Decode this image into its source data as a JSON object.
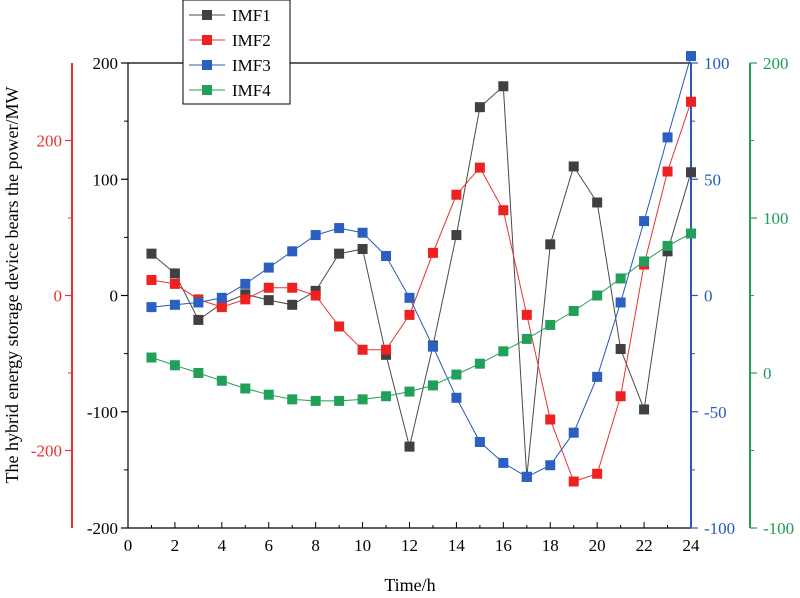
{
  "chart_data": {
    "type": "line",
    "xlabel": "Time/h",
    "ylabel": "The hybrid energy storage device bears the power/MW",
    "x": [
      1,
      2,
      3,
      4,
      5,
      6,
      7,
      8,
      9,
      10,
      11,
      12,
      13,
      14,
      15,
      16,
      17,
      18,
      19,
      20,
      21,
      22,
      23,
      24
    ],
    "xlim": [
      0,
      24
    ],
    "x_ticks": [
      0,
      2,
      4,
      6,
      8,
      10,
      12,
      14,
      16,
      18,
      20,
      22,
      24
    ],
    "axes": {
      "IMF1": {
        "range": [
          -200,
          200
        ],
        "ticks": [
          -200,
          -100,
          0,
          100,
          200
        ],
        "side": "left-inner",
        "color": "#000000"
      },
      "IMF2": {
        "range": [
          -300,
          300
        ],
        "ticks": [
          -200,
          0,
          200
        ],
        "side": "left-outer",
        "color": "#e8322e"
      },
      "IMF3": {
        "range": [
          -100,
          100
        ],
        "ticks": [
          -100,
          -50,
          0,
          50,
          100
        ],
        "side": "right-inner",
        "color": "#2659b8"
      },
      "IMF4": {
        "range": [
          -100,
          200
        ],
        "ticks": [
          -100,
          0,
          100,
          200
        ],
        "side": "right-outer",
        "color": "#1f9e57"
      }
    },
    "series": [
      {
        "name": "IMF1",
        "color": "#4a4a4a",
        "marker": "#404040",
        "values": [
          36,
          19,
          -21,
          -7,
          1,
          -4,
          -8,
          4,
          36,
          40,
          -51,
          -130,
          -43,
          52,
          162,
          180,
          -156,
          44,
          111,
          80,
          -46,
          -98,
          38,
          106
        ]
      },
      {
        "name": "IMF2",
        "color": "#e8322e",
        "marker": "#ee2020",
        "values": [
          20,
          15,
          -5,
          -15,
          -5,
          10,
          10,
          0,
          -40,
          -70,
          -70,
          -25,
          55,
          130,
          165,
          110,
          -25,
          -160,
          -240,
          -230,
          -130,
          40,
          160,
          250
        ]
      },
      {
        "name": "IMF3",
        "color": "#2659b8",
        "marker": "#2c5fc2",
        "values": [
          -5,
          -4,
          -3,
          -1,
          5,
          12,
          19,
          26,
          29,
          27,
          17,
          -1,
          -22,
          -44,
          -63,
          -72,
          -78,
          -73,
          -59,
          -35,
          -3,
          32,
          68,
          103
        ]
      },
      {
        "name": "IMF4",
        "color": "#1f9e57",
        "marker": "#21a05a",
        "values": [
          10,
          5,
          0,
          -5,
          -10,
          -14,
          -17,
          -18,
          -18,
          -17,
          -15,
          -12,
          -8,
          -1,
          6,
          14,
          22,
          31,
          40,
          50,
          61,
          72,
          82,
          90
        ]
      }
    ],
    "legend": {
      "placement": "top-left",
      "entries": [
        "IMF1",
        "IMF2",
        "IMF3",
        "IMF4"
      ]
    }
  }
}
